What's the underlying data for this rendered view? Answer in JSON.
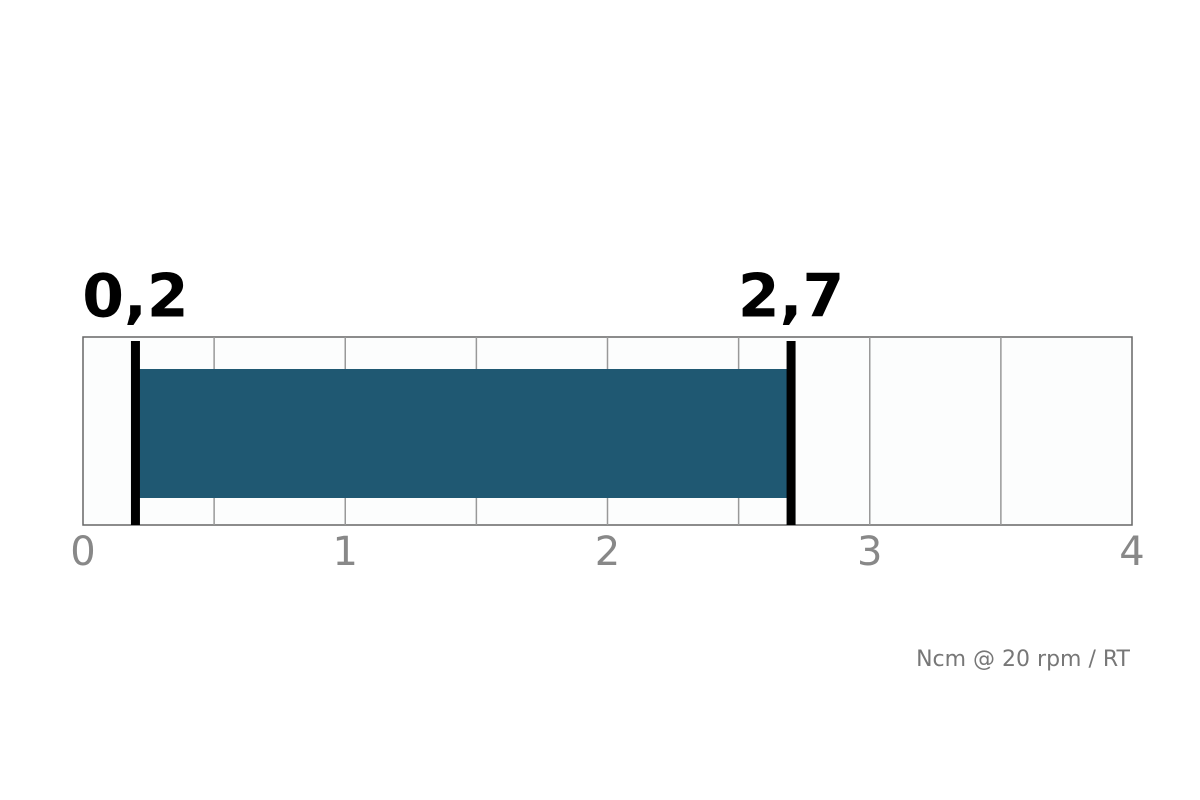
{
  "chart_data": {
    "type": "range",
    "values": [
      0.2,
      2.7
    ],
    "value_labels": [
      "0,2",
      "2,7"
    ],
    "color": "#1f5872",
    "marker_color": "#000000",
    "xlim": [
      0,
      4
    ],
    "xticks": [
      0,
      1,
      2,
      3,
      4
    ],
    "minor_xticks": [
      0.5,
      1.5,
      2.5,
      3.5
    ],
    "grid": true,
    "unit": "Ncm @ 20 rpm / RT"
  }
}
